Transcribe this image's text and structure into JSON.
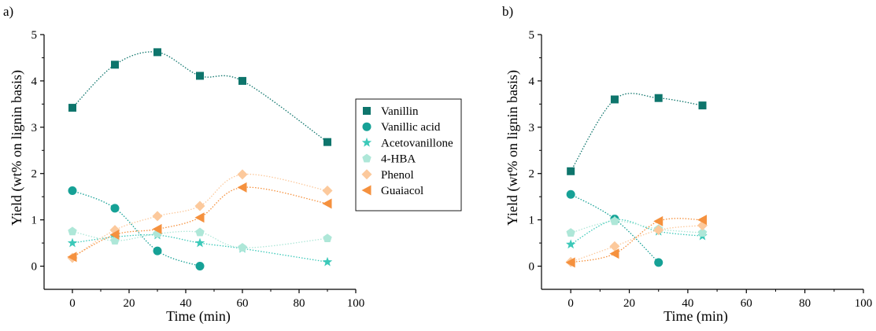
{
  "chart_data": [
    {
      "panel_label": "a)",
      "type": "scatter",
      "xlabel": "Time (min)",
      "ylabel": "Yield (wt% on lignin basis)",
      "xlim": [
        -10,
        100
      ],
      "ylim": [
        -0.5,
        5
      ],
      "xticks": [
        "0",
        "20",
        "40",
        "60",
        "80",
        "100"
      ],
      "yticks": [
        "0",
        "1",
        "2",
        "3",
        "4",
        "5"
      ],
      "grid": false,
      "trend_lines": "dotted smooth fits per series",
      "series": [
        {
          "name": "Vanillin",
          "color": "#0e756c",
          "marker": "square",
          "x": [
            0,
            15,
            30,
            45,
            60,
            90
          ],
          "y": [
            3.42,
            4.35,
            4.62,
            4.11,
            4.0,
            2.68
          ]
        },
        {
          "name": "Vanillic acid",
          "color": "#16a196",
          "marker": "circle",
          "x": [
            0,
            15,
            30,
            45
          ],
          "y": [
            1.63,
            1.25,
            0.33,
            0.0
          ]
        },
        {
          "name": "Acetovanillone",
          "color": "#3cc9b9",
          "marker": "star",
          "x": [
            0,
            15,
            30,
            45,
            60,
            90
          ],
          "y": [
            0.5,
            0.63,
            0.67,
            0.5,
            0.38,
            0.09
          ]
        },
        {
          "name": "4-HBA",
          "color": "#aee7d8",
          "marker": "pentagon",
          "x": [
            0,
            15,
            30,
            45,
            60,
            90
          ],
          "y": [
            0.75,
            0.55,
            0.7,
            0.73,
            0.4,
            0.6
          ]
        },
        {
          "name": "Phenol",
          "color": "#fcc99c",
          "marker": "diamond",
          "x": [
            0,
            15,
            30,
            45,
            60,
            90
          ],
          "y": [
            0.18,
            0.78,
            1.08,
            1.3,
            1.98,
            1.63
          ]
        },
        {
          "name": "Guaiacol",
          "color": "#f5913e",
          "marker": "triangle-left",
          "x": [
            0,
            15,
            30,
            45,
            60,
            90
          ],
          "y": [
            0.2,
            0.68,
            0.8,
            1.05,
            1.7,
            1.35
          ]
        }
      ]
    },
    {
      "panel_label": "b)",
      "type": "scatter",
      "xlabel": "Time (min)",
      "ylabel": "Yield (wt% on lignin basis)",
      "xlim": [
        -10,
        100
      ],
      "ylim": [
        -0.5,
        5
      ],
      "xticks": [
        "0",
        "20",
        "40",
        "60",
        "80",
        "100"
      ],
      "yticks": [
        "0",
        "1",
        "2",
        "3",
        "4",
        "5"
      ],
      "grid": false,
      "trend_lines": "dotted smooth fits per series",
      "series": [
        {
          "name": "Vanillin",
          "color": "#0e756c",
          "marker": "square",
          "x": [
            0,
            15,
            30,
            45
          ],
          "y": [
            2.05,
            3.6,
            3.63,
            3.47
          ]
        },
        {
          "name": "Vanillic acid",
          "color": "#16a196",
          "marker": "circle",
          "x": [
            0,
            15,
            30
          ],
          "y": [
            1.55,
            1.02,
            0.08
          ]
        },
        {
          "name": "Acetovanillone",
          "color": "#3cc9b9",
          "marker": "star",
          "x": [
            0,
            15,
            30,
            45
          ],
          "y": [
            0.47,
            1.0,
            0.75,
            0.65
          ]
        },
        {
          "name": "4-HBA",
          "color": "#aee7d8",
          "marker": "pentagon",
          "x": [
            0,
            15,
            30,
            45
          ],
          "y": [
            0.72,
            0.97,
            0.8,
            0.72
          ]
        },
        {
          "name": "Phenol",
          "color": "#fcc99c",
          "marker": "diamond",
          "x": [
            0,
            15,
            30,
            45
          ],
          "y": [
            0.09,
            0.43,
            0.78,
            0.88
          ]
        },
        {
          "name": "Guaiacol",
          "color": "#f5913e",
          "marker": "triangle-left",
          "x": [
            0,
            15,
            30,
            45
          ],
          "y": [
            0.08,
            0.27,
            0.97,
            1.0
          ]
        }
      ]
    }
  ],
  "legend": {
    "placement": "between panels, right of panel a",
    "entries": [
      "Vanillin",
      "Vanillic acid",
      "Acetovanillone",
      "4-HBA",
      "Phenol",
      "Guaiacol"
    ]
  }
}
